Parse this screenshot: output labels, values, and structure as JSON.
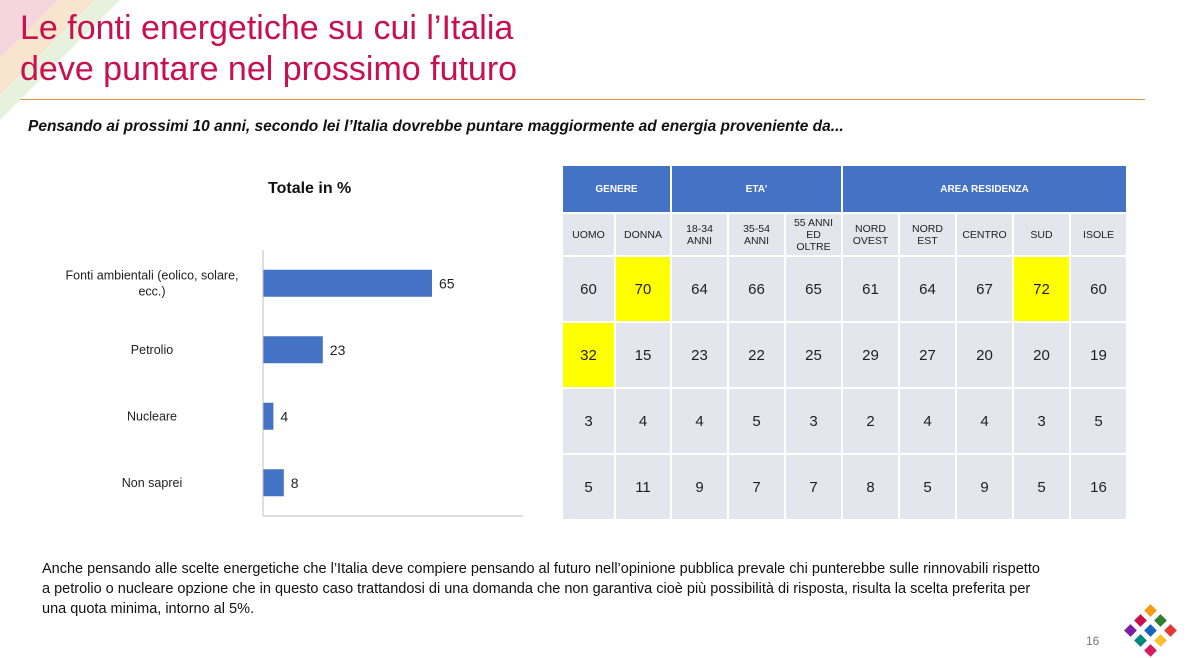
{
  "slide": {
    "title_line1": "Le fonti energetiche su cui l’Italia",
    "title_line2": "deve puntare nel prossimo futuro",
    "question": "Pensando ai prossimi 10 anni, secondo lei l’Italia dovrebbe puntare maggiormente ad energia proveniente da...",
    "note": "Anche pensando alle scelte energetiche che l’Italia deve compiere pensando al futuro nell’opinione pubblica prevale chi punterebbe sulle rinnovabili rispetto a petrolio o nucleare opzione che  in questo caso trattandosi di una domanda che non garantiva cioè più possibilità di risposta, risulta la scelta preferita per una quota minima,  intorno al 5%.",
    "page_number": "16",
    "accent_color": "#c8104e",
    "rule_color": "#e0913f"
  },
  "chart_data": [
    {
      "type": "bar",
      "orientation": "horizontal",
      "title": "Totale in %",
      "categories": [
        [
          "Fonti ambientali (eolico, solare,",
          "ecc.)"
        ],
        [
          "Petrolio"
        ],
        [
          "Nucleare"
        ],
        [
          "Non saprei"
        ]
      ],
      "values": [
        65,
        23,
        4,
        8
      ],
      "xlim": [
        0,
        100
      ],
      "bar_color": "#4472c4",
      "grid": false,
      "legend": "none"
    },
    {
      "type": "table",
      "groups": [
        {
          "label": "GENERE",
          "span": 2
        },
        {
          "label": "ETA'",
          "span": 3
        },
        {
          "label": "AREA RESIDENZA",
          "span": 5
        }
      ],
      "columns": [
        [
          "UOMO"
        ],
        [
          "DONNA"
        ],
        [
          "18-34",
          "ANNI"
        ],
        [
          "35-54",
          "ANNI"
        ],
        [
          "55 ANNI",
          "ED OLTRE"
        ],
        [
          "NORD",
          "OVEST"
        ],
        [
          "NORD",
          "EST"
        ],
        [
          "CENTRO"
        ],
        [
          "SUD"
        ],
        [
          "ISOLE"
        ]
      ],
      "rows": [
        [
          60,
          70,
          64,
          66,
          65,
          61,
          64,
          67,
          72,
          60
        ],
        [
          32,
          15,
          23,
          22,
          25,
          29,
          27,
          20,
          20,
          19
        ],
        [
          3,
          4,
          4,
          5,
          3,
          2,
          4,
          4,
          3,
          5
        ],
        [
          5,
          11,
          9,
          7,
          7,
          8,
          5,
          9,
          5,
          16
        ]
      ],
      "highlighted_cells": [
        [
          0,
          1
        ],
        [
          0,
          8
        ],
        [
          1,
          0
        ]
      ],
      "header_color": "#4472c4",
      "cell_color": "#e3e6ed",
      "highlight_color": "#ffff00"
    }
  ]
}
